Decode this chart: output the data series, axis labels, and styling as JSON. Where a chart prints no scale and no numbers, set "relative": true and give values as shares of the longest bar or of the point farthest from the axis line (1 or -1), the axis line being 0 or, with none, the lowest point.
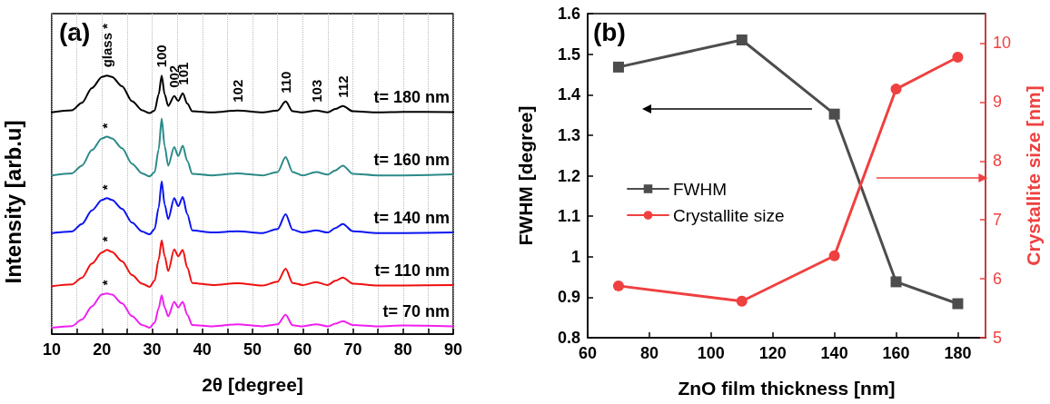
{
  "chart_data": [
    {
      "type": "line",
      "relative": true,
      "xlabel": "2θ [degree]",
      "ylabel": "Intensity [arb.u]",
      "xlim": [
        10,
        90
      ],
      "xticks": [
        10,
        {
          "value": 15,
          "label": null
        },
        20,
        {
          "value": 25,
          "label": null
        },
        30,
        {
          "value": 35,
          "label": null
        },
        40,
        {
          "value": 45,
          "label": null
        },
        50,
        {
          "value": 55,
          "label": null
        },
        60,
        {
          "value": 65,
          "label": null
        },
        70,
        {
          "value": 75,
          "label": null
        },
        80,
        {
          "value": 85,
          "label": null
        },
        90
      ],
      "grid": "x",
      "marker": "none",
      "line_style": "solid",
      "x": [
        10,
        14,
        16,
        18,
        20,
        21,
        22,
        24,
        26,
        28,
        29.5,
        30.5,
        31.3,
        31.9,
        32.5,
        33.2,
        34.4,
        35.2,
        36.1,
        37,
        38,
        42,
        47,
        52,
        55,
        56.6,
        58,
        60,
        62.7,
        65,
        66.5,
        68,
        70,
        75,
        80,
        90
      ],
      "series": [
        {
          "name": "t= 180 nm",
          "color": "#000000",
          "values": [
            0.858,
            0.866,
            0.895,
            0.952,
            0.995,
            1.0,
            0.995,
            0.959,
            0.901,
            0.866,
            0.855,
            0.865,
            0.927,
            1.0,
            0.927,
            0.883,
            0.921,
            0.902,
            0.932,
            0.892,
            0.862,
            0.858,
            0.865,
            0.858,
            0.865,
            0.9,
            0.862,
            0.858,
            0.865,
            0.858,
            0.871,
            0.883,
            0.862,
            0.858,
            0.86,
            0.859
          ]
        },
        {
          "name": "t= 160 nm",
          "color": "#2a8a88",
          "values": [
            0.614,
            0.622,
            0.652,
            0.712,
            0.757,
            0.764,
            0.757,
            0.719,
            0.659,
            0.622,
            0.61,
            0.627,
            0.714,
            0.833,
            0.727,
            0.652,
            0.724,
            0.689,
            0.729,
            0.67,
            0.62,
            0.614,
            0.622,
            0.614,
            0.627,
            0.685,
            0.627,
            0.614,
            0.627,
            0.617,
            0.633,
            0.652,
            0.62,
            0.614,
            0.614,
            0.618
          ]
        },
        {
          "name": "t= 140 nm",
          "color": "#0a14f0",
          "values": [
            0.391,
            0.397,
            0.426,
            0.479,
            0.519,
            0.526,
            0.519,
            0.485,
            0.431,
            0.397,
            0.386,
            0.407,
            0.489,
            0.591,
            0.501,
            0.445,
            0.526,
            0.495,
            0.53,
            0.464,
            0.401,
            0.393,
            0.398,
            0.391,
            0.407,
            0.464,
            0.404,
            0.393,
            0.401,
            0.393,
            0.41,
            0.426,
            0.398,
            0.391,
            0.391,
            0.393
          ]
        },
        {
          "name": "t= 110 nm",
          "color": "#f01010",
          "values": [
            0.185,
            0.192,
            0.218,
            0.273,
            0.316,
            0.326,
            0.318,
            0.282,
            0.228,
            0.195,
            0.183,
            0.207,
            0.288,
            0.363,
            0.301,
            0.244,
            0.328,
            0.301,
            0.326,
            0.257,
            0.198,
            0.19,
            0.197,
            0.188,
            0.203,
            0.253,
            0.198,
            0.19,
            0.201,
            0.19,
            0.206,
            0.219,
            0.195,
            0.188,
            0.188,
            0.19
          ]
        },
        {
          "name": "t= 70 nm",
          "color": "#f020f0",
          "values": [
            0.025,
            0.031,
            0.056,
            0.107,
            0.154,
            0.157,
            0.153,
            0.119,
            0.069,
            0.035,
            0.025,
            0.044,
            0.1,
            0.15,
            0.103,
            0.069,
            0.125,
            0.103,
            0.125,
            0.075,
            0.035,
            0.03,
            0.038,
            0.03,
            0.038,
            0.075,
            0.034,
            0.03,
            0.038,
            0.03,
            0.04,
            0.05,
            0.035,
            0.03,
            0.033,
            0.03
          ]
        }
      ],
      "annotations": [
        "(a)",
        {
          "text": "glass *",
          "x": 21,
          "y": 1.0
        },
        {
          "text": "100",
          "x": 31.9,
          "y": 1.0
        },
        {
          "text": "002",
          "x": 34.4,
          "y": 0.921
        },
        {
          "text": "101",
          "x": 36.1,
          "y": 0.932
        },
        {
          "text": "102",
          "x": 47,
          "y": 0.865
        },
        {
          "text": "110",
          "x": 56.6,
          "y": 0.9
        },
        {
          "text": "103",
          "x": 62.7,
          "y": 0.865
        },
        {
          "text": "112",
          "x": 68,
          "y": 0.883
        },
        {
          "text": "*",
          "x": 21,
          "y": 0.764
        },
        {
          "text": "*",
          "x": 21,
          "y": 0.526
        },
        {
          "text": "*",
          "x": 21,
          "y": 0.326
        },
        {
          "text": "*",
          "x": 21,
          "y": 0.157
        }
      ]
    },
    {
      "type": "line",
      "xlabel": "ZnO film thickness [nm]",
      "ylabel": "FWHM [degree]",
      "y2label": "Crystallite size [nm]",
      "xlim": [
        60,
        189
      ],
      "xticks": [
        60,
        80,
        100,
        120,
        140,
        160,
        180
      ],
      "ylim": [
        0.8,
        1.6
      ],
      "yticks": [
        0.8,
        0.9,
        1,
        1.1,
        1.2,
        1.3,
        1.4,
        1.5,
        1.6
      ],
      "y2lim": [
        5,
        10.5
      ],
      "y2ticks": [
        5,
        6,
        7,
        8,
        9,
        10
      ],
      "legend": "left",
      "line_style": "solid",
      "x": [
        70,
        110,
        140,
        160,
        180
      ],
      "series": [
        {
          "name": "FWHM",
          "color": "#4d4d4d",
          "marker": "square",
          "values": [
            1.468,
            1.535,
            1.352,
            0.938,
            0.884
          ]
        },
        {
          "name": "Crystallite size",
          "color": "#f04040",
          "marker": "circle",
          "axis": "y2",
          "values": [
            5.88,
            5.62,
            6.39,
            9.22,
            9.76
          ]
        }
      ],
      "annotations": [
        "(b)"
      ]
    }
  ]
}
